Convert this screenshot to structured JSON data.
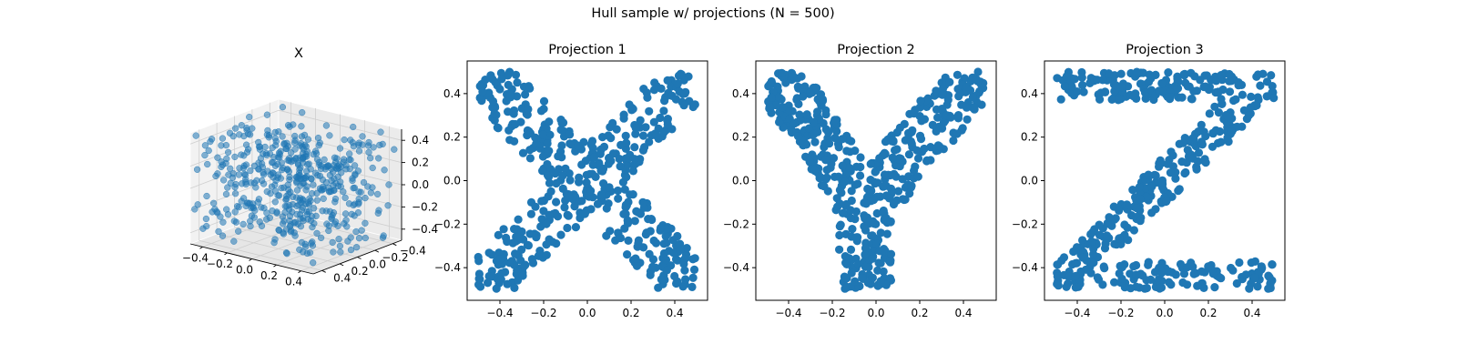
{
  "figure": {
    "suptitle": "Hull sample w/ projections (N = 500)",
    "point_color": "#1f77b4",
    "n_points": 500
  },
  "chart_data": [
    {
      "type": "scatter3d",
      "title": "X",
      "xlabel": "",
      "ylabel": "",
      "zlabel": "",
      "xlim": [
        -0.5,
        0.5
      ],
      "ylim": [
        -0.5,
        0.5
      ],
      "zlim": [
        -0.5,
        0.5
      ],
      "x_ticks": [
        -0.4,
        -0.2,
        0.0,
        0.2,
        0.4
      ],
      "x_tick_labels": [
        "−0.4",
        "−0.2",
        "0.0",
        "0.2",
        "0.4"
      ],
      "y_ticks": [
        -0.4,
        -0.2,
        0.0,
        0.2,
        0.4
      ],
      "y_tick_labels": [
        "−0.4",
        "−0.2",
        "0.0",
        "0.2",
        "0.4"
      ],
      "z_ticks": [
        -0.4,
        -0.2,
        0.0,
        0.2,
        0.4
      ],
      "z_tick_labels": [
        "−0.4",
        "−0.2",
        "0.0",
        "0.2",
        "0.4"
      ],
      "grid": true,
      "marker_alpha": 0.55,
      "seed": 3
    },
    {
      "type": "scatter",
      "title": "Projection 1",
      "shape": "X",
      "xlabel": "",
      "ylabel": "",
      "xlim": [
        -0.55,
        0.55
      ],
      "ylim": [
        -0.55,
        0.55
      ],
      "x_ticks": [
        -0.4,
        -0.2,
        0.0,
        0.2,
        0.4
      ],
      "x_tick_labels": [
        "−0.4",
        "−0.2",
        "0.0",
        "0.2",
        "0.4"
      ],
      "y_ticks": [
        -0.4,
        -0.2,
        0.0,
        0.2,
        0.4
      ],
      "y_tick_labels": [
        "−0.4",
        "−0.2",
        "0.0",
        "0.2",
        "0.4"
      ],
      "grid": false,
      "seed": 11
    },
    {
      "type": "scatter",
      "title": "Projection 2",
      "shape": "Y",
      "xlabel": "",
      "ylabel": "",
      "xlim": [
        -0.55,
        0.55
      ],
      "ylim": [
        -0.55,
        0.55
      ],
      "x_ticks": [
        -0.4,
        -0.2,
        0.0,
        0.2,
        0.4
      ],
      "x_tick_labels": [
        "−0.4",
        "−0.2",
        "0.0",
        "0.2",
        "0.4"
      ],
      "y_ticks": [
        -0.4,
        -0.2,
        0.0,
        0.2,
        0.4
      ],
      "y_tick_labels": [
        "−0.4",
        "−0.2",
        "0.0",
        "0.2",
        "0.4"
      ],
      "grid": false,
      "seed": 23
    },
    {
      "type": "scatter",
      "title": "Projection 3",
      "shape": "Z",
      "xlabel": "",
      "ylabel": "",
      "xlim": [
        -0.55,
        0.55
      ],
      "ylim": [
        -0.55,
        0.55
      ],
      "x_ticks": [
        -0.4,
        -0.2,
        0.0,
        0.2,
        0.4
      ],
      "x_tick_labels": [
        "−0.4",
        "−0.2",
        "0.0",
        "0.2",
        "0.4"
      ],
      "y_ticks": [
        -0.4,
        -0.2,
        0.0,
        0.2,
        0.4
      ],
      "y_tick_labels": [
        "−0.4",
        "−0.2",
        "0.0",
        "0.2",
        "0.4"
      ],
      "grid": false,
      "seed": 37
    }
  ]
}
